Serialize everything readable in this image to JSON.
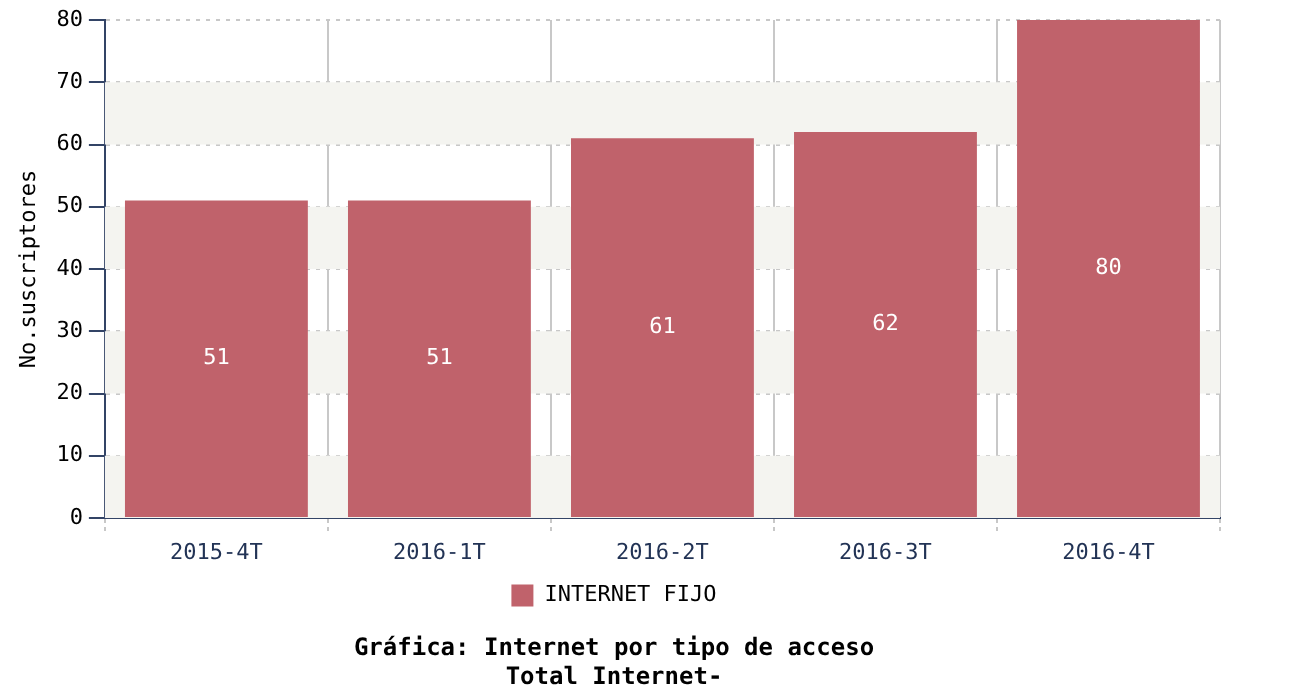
{
  "chart_data": {
    "type": "bar",
    "title": "Gráfica: Internet por tipo de acceso",
    "subtitle": "Total Internet-",
    "ylabel": "No.suscriptores",
    "categories": [
      "2015-4T",
      "2016-1T",
      "2016-2T",
      "2016-3T",
      "2016-4T"
    ],
    "series": [
      {
        "name": "INTERNET FIJO",
        "color": "#c0626b",
        "values": [
          51,
          51,
          61,
          62,
          80
        ]
      }
    ],
    "ylim": [
      0,
      80
    ],
    "yticks": [
      0,
      10,
      20,
      30,
      40,
      50,
      60,
      70,
      80
    ],
    "grid": true,
    "legend": "bottom",
    "data_labels": true
  }
}
